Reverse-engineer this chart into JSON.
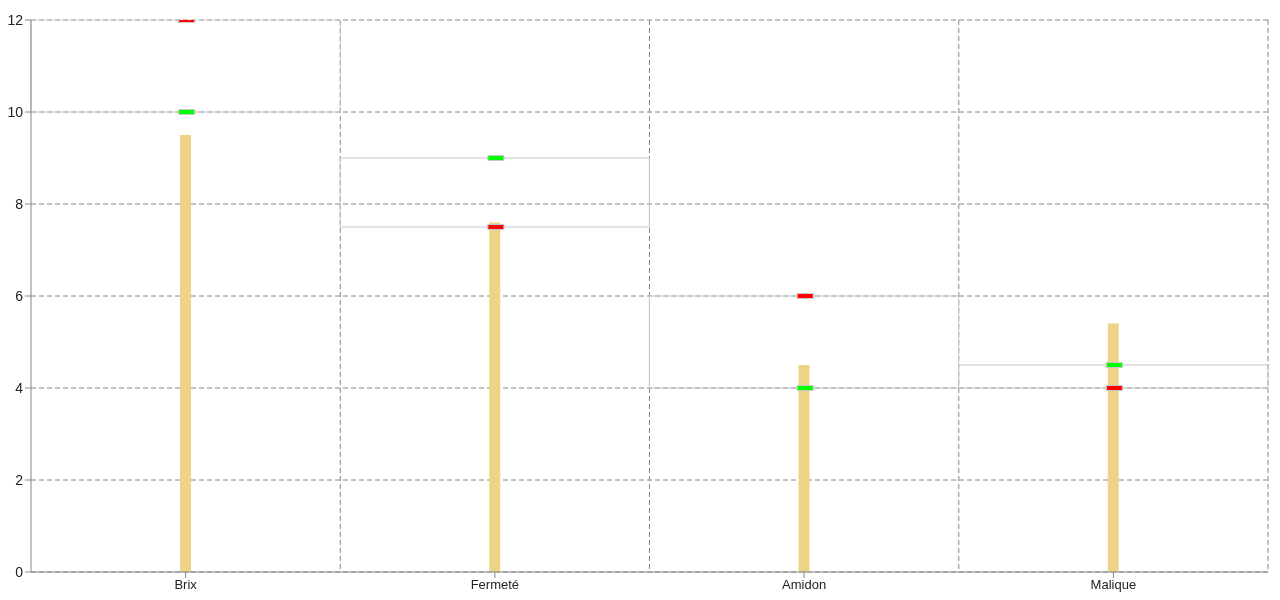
{
  "chart_data": {
    "type": "bar",
    "categories": [
      "Brix",
      "Fermeté",
      "Amidon",
      "Malique"
    ],
    "series": [
      {
        "base": [
          10,
          7.5,
          4,
          4
        ],
        "values": [
          2,
          1.5,
          2,
          0.5
        ],
        "color": "#c8c8c8"
      },
      {
        "values": [
          9.5,
          7.6,
          4.5,
          5.4
        ],
        "color": "#edd385"
      },
      {
        "type": "scatter",
        "values": [
          10,
          9,
          4,
          4.5
        ],
        "color": "#00ff00"
      },
      {
        "type": "scatter",
        "values": [
          12,
          7.5,
          6,
          4
        ],
        "color": "#ff0000"
      }
    ],
    "ylim": [
      0,
      12
    ],
    "yticks": [
      0,
      2,
      4,
      6,
      8,
      10,
      12
    ],
    "grid": true
  }
}
